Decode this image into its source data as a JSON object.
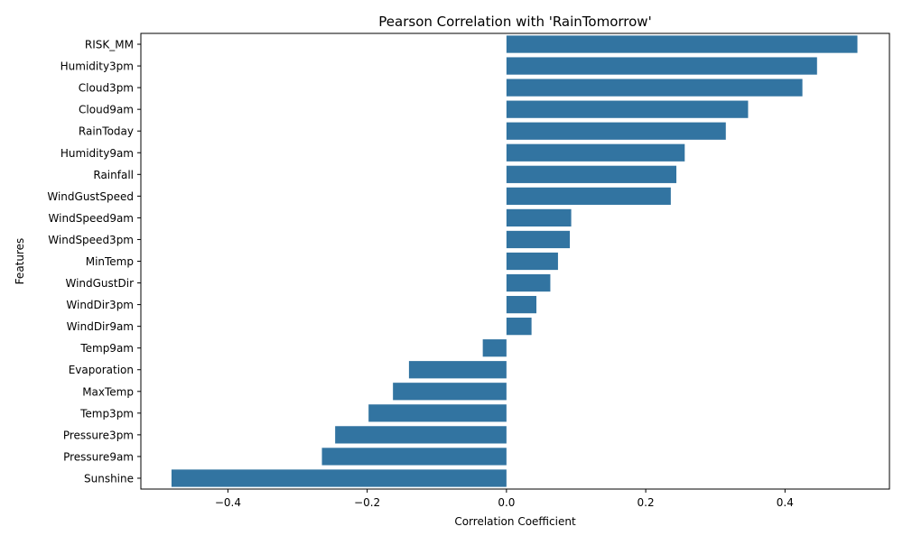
{
  "chart_data": {
    "type": "bar",
    "orientation": "horizontal",
    "title": "Pearson Correlation with 'RainTomorrow'",
    "xlabel": "Correlation Coefficient",
    "ylabel": "Features",
    "categories": [
      "RISK_MM",
      "Humidity3pm",
      "Cloud3pm",
      "Cloud9am",
      "RainToday",
      "Humidity9am",
      "Rainfall",
      "WindGustSpeed",
      "WindSpeed9am",
      "WindSpeed3pm",
      "MinTemp",
      "WindGustDir",
      "WindDir3pm",
      "WindDir9am",
      "Temp9am",
      "Evaporation",
      "MaxTemp",
      "Temp3pm",
      "Pressure3pm",
      "Pressure9am",
      "Sunshine"
    ],
    "values": [
      0.504,
      0.446,
      0.425,
      0.347,
      0.315,
      0.256,
      0.244,
      0.236,
      0.093,
      0.091,
      0.074,
      0.063,
      0.043,
      0.036,
      -0.034,
      -0.14,
      -0.163,
      -0.198,
      -0.246,
      -0.265,
      -0.481
    ],
    "xlim": [
      -0.525,
      0.55
    ],
    "xticks": [
      -0.4,
      -0.2,
      0.0,
      0.2,
      0.4
    ],
    "xtick_labels": [
      "−0.4",
      "−0.2",
      "0.0",
      "0.2",
      "0.4"
    ],
    "bar_color": "#3274a1",
    "grid": false
  }
}
